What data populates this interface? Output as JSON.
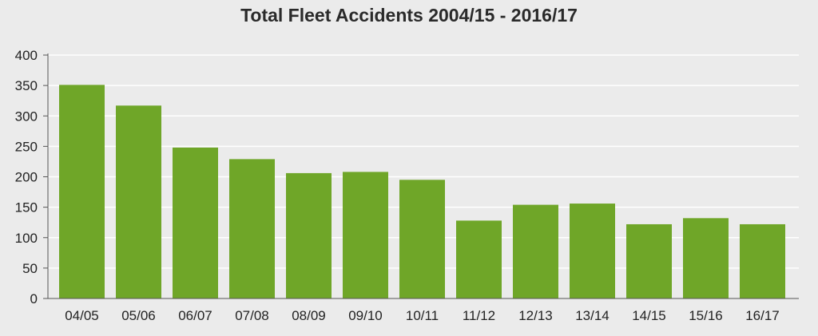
{
  "chart_data": {
    "type": "bar",
    "title": "Total Fleet Accidents 2004/15 - 2016/17",
    "xlabel": "",
    "ylabel": "",
    "categories": [
      "04/05",
      "05/06",
      "06/07",
      "07/08",
      "08/09",
      "09/10",
      "10/11",
      "11/12",
      "12/13",
      "13/14",
      "14/15",
      "15/16",
      "16/17"
    ],
    "values": [
      351,
      317,
      248,
      229,
      206,
      208,
      195,
      128,
      154,
      156,
      122,
      132,
      122
    ],
    "ylim": [
      0,
      400
    ],
    "yticks": [
      0,
      50,
      100,
      150,
      200,
      250,
      300,
      350,
      400
    ],
    "grid": true,
    "legend": "none",
    "colors": {
      "bar": "#6fa628",
      "grid": "#ffffff",
      "axis": "#555555",
      "background": "#ebebeb"
    }
  }
}
